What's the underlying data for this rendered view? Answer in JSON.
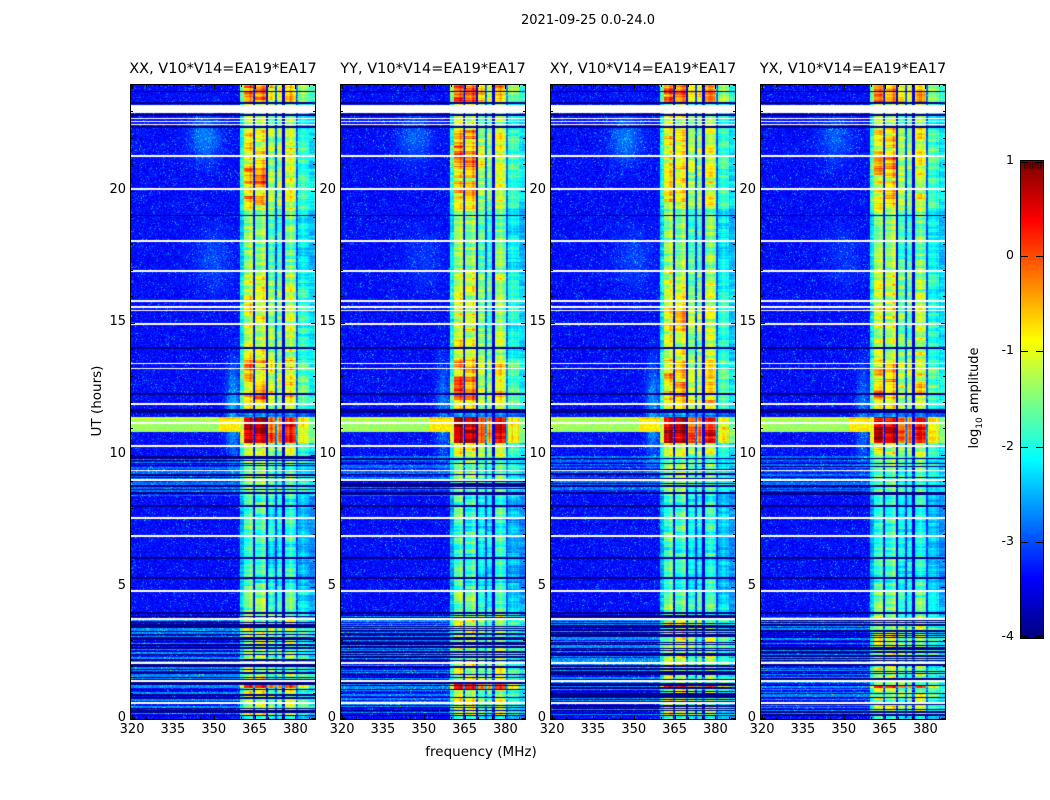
{
  "chart_data": {
    "type": "heatmap",
    "suptitle": "2021-09-25 0.0-24.0",
    "xlabel": "frequency (MHz)",
    "ylabel": "UT (hours)",
    "xlim": [
      319.6,
      387.2
    ],
    "ylim": [
      0,
      24
    ],
    "xticks": [
      320,
      335,
      350,
      365,
      380
    ],
    "yticks": [
      0,
      5,
      10,
      15,
      20
    ],
    "x_minor_step": 5,
    "y_minor_step": 1,
    "colormap": "jet",
    "grid": false,
    "colorbar": {
      "label_prefix": "log",
      "label_sub": "10",
      "label_suffix": " amplitude",
      "ticks": [
        1,
        0,
        -1,
        -2,
        -3,
        -4
      ],
      "vmin": -4,
      "vmax": 1
    },
    "panels": [
      {
        "id": "XX",
        "title": "XX, V10*V14=EA19*EA17",
        "seed": 11,
        "haze_gain": 1.0,
        "hot_spots": [
          [
            20.25,
            20.85,
            359.5,
            369.3,
            0.55
          ],
          [
            19.55,
            19.78,
            361,
            368,
            0.5
          ],
          [
            12.1,
            12.75,
            365.3,
            372.6,
            0.35
          ],
          [
            12.75,
            13.45,
            359.5,
            364.3,
            0.25
          ]
        ]
      },
      {
        "id": "YY",
        "title": "YY, V10*V14=EA19*EA17",
        "seed": 23,
        "haze_gain": 0.75,
        "hot_spots": [
          [
            20.9,
            21.7,
            359.5,
            372.6,
            0.65
          ],
          [
            19.9,
            20.35,
            359.5,
            369.3,
            0.35
          ],
          [
            21.95,
            22.35,
            365.3,
            369.3,
            0.45
          ],
          [
            12.0,
            12.95,
            359.5,
            369.3,
            0.45
          ],
          [
            23.3,
            23.95,
            359.5,
            372.6,
            0.3
          ]
        ]
      },
      {
        "id": "XY",
        "title": "XY, V10*V14=EA19*EA17",
        "seed": 37,
        "haze_gain": 0.95,
        "hot_spots": [
          [
            14.7,
            15.45,
            365.3,
            375.2,
            0.35
          ],
          [
            12.0,
            12.55,
            365.3,
            380.4,
            0.2
          ],
          [
            20.3,
            20.65,
            365.3,
            369.3,
            0.2
          ]
        ]
      },
      {
        "id": "YX",
        "title": "YX, V10*V14=EA19*EA17",
        "seed": 51,
        "haze_gain": 0.7,
        "hot_spots": [
          [
            20.55,
            21.35,
            359.5,
            369.3,
            0.5
          ],
          [
            12.0,
            12.65,
            359.5,
            369.3,
            0.3
          ],
          [
            23.3,
            23.9,
            359.5,
            372.6,
            0.25
          ],
          [
            19.6,
            19.85,
            361,
            368,
            0.3
          ]
        ]
      }
    ],
    "features": {
      "background": {
        "level": -3.35,
        "sigma": 0.16,
        "speckle_prob": 0.06,
        "speckle_max": 1.1
      },
      "rfi_band_segments": [
        [
          359.5,
          361.0,
          0.55
        ],
        [
          361.0,
          364.3,
          1.0
        ],
        [
          364.3,
          364.9,
          0.15
        ],
        [
          364.9,
          365.3,
          0.0
        ],
        [
          365.3,
          369.3,
          1.0
        ],
        [
          369.3,
          369.9,
          0.08
        ],
        [
          369.9,
          372.6,
          0.8
        ],
        [
          372.6,
          373.2,
          0.15
        ],
        [
          373.2,
          375.2,
          0.75
        ],
        [
          375.2,
          376.2,
          0.03
        ],
        [
          376.2,
          380.4,
          0.9
        ],
        [
          380.4,
          380.9,
          0.18
        ],
        [
          380.9,
          385.0,
          0.6
        ],
        [
          385.0,
          387.2,
          0.45
        ]
      ],
      "rfi_core_freqs": [
        363.6,
        368.3,
        371.2,
        374.2,
        378.3,
        383.0
      ],
      "rfi_envelope": [
        [
          0.0,
          0.12,
          -2.0,
          0.2
        ],
        [
          0.12,
          3.95,
          -1.25,
          0.55
        ],
        [
          3.95,
          4.9,
          -1.6,
          0.4
        ],
        [
          4.9,
          8.45,
          -1.9,
          0.35
        ],
        [
          8.45,
          9.95,
          -1.55,
          0.35
        ],
        [
          9.95,
          10.45,
          -1.05,
          0.4
        ],
        [
          10.45,
          11.45,
          0.65,
          0.35
        ],
        [
          11.45,
          11.7,
          -2.8,
          0.1
        ],
        [
          11.7,
          11.95,
          -1.0,
          0.3
        ],
        [
          11.95,
          13.6,
          -0.75,
          0.5
        ],
        [
          13.6,
          16.95,
          -1.15,
          0.45
        ],
        [
          16.95,
          19.3,
          -1.5,
          0.35
        ],
        [
          19.3,
          22.4,
          -0.95,
          0.45
        ],
        [
          22.4,
          23.3,
          -1.3,
          0.35
        ],
        [
          23.3,
          24.0,
          -0.35,
          0.4
        ]
      ],
      "white_lines": [
        [
          23.08,
          0.3
        ],
        [
          22.73,
          0.06
        ],
        [
          22.62,
          0.06
        ],
        [
          22.5,
          0.06
        ],
        [
          21.3,
          0.08
        ],
        [
          20.07,
          0.08
        ],
        [
          18.1,
          0.08
        ],
        [
          16.97,
          0.08
        ],
        [
          15.83,
          0.08
        ],
        [
          15.6,
          0.06
        ],
        [
          15.46,
          0.06
        ],
        [
          14.96,
          0.08
        ],
        [
          13.45,
          0.06
        ],
        [
          13.27,
          0.06
        ],
        [
          11.93,
          0.08
        ],
        [
          11.21,
          0.06
        ],
        [
          10.34,
          0.08
        ],
        [
          9.4,
          0.06
        ],
        [
          9.05,
          0.1
        ],
        [
          7.61,
          0.08
        ],
        [
          6.93,
          0.08
        ],
        [
          4.85,
          0.08
        ],
        [
          3.79,
          0.06
        ],
        [
          2.12,
          0.08
        ],
        [
          1.44,
          0.06
        ],
        [
          0.61,
          0.08
        ]
      ],
      "black_lines": [
        [
          23.75,
          0.05
        ],
        [
          23.32,
          0.06
        ],
        [
          22.86,
          0.08
        ],
        [
          22.42,
          0.06
        ],
        [
          19.05,
          0.05
        ],
        [
          14.05,
          0.06
        ],
        [
          12.31,
          0.06
        ],
        [
          11.66,
          0.12
        ],
        [
          9.85,
          0.05
        ],
        [
          9.66,
          0.05
        ],
        [
          8.83,
          0.06
        ],
        [
          8.56,
          0.06
        ],
        [
          8.07,
          0.06
        ],
        [
          6.1,
          0.05
        ],
        [
          5.34,
          0.06
        ],
        [
          4.01,
          0.06
        ]
      ],
      "stripe_zone": {
        "t0": 0.12,
        "t1": 3.95,
        "p_black": 0.4,
        "p_speckle": 0.35,
        "speckle_base": -2.7,
        "red_dash_t": [
          1.15,
          1.35
        ]
      },
      "speckle_zone": {
        "t0": 8.45,
        "t1": 9.95,
        "p_dark": 0.15,
        "p_bright": 0.5,
        "bright_base": -2.85,
        "else_base": -3.25
      },
      "burst": {
        "t0": 10.85,
        "t1": 11.45,
        "left_value": -1.35,
        "mid_f0": 352.0,
        "mid_value": -0.8
      },
      "haze_blobs": [
        [
          347,
          22.0,
          6,
          0.95,
          0.6
        ],
        [
          350,
          17.4,
          7,
          1.2,
          0.32
        ],
        [
          357,
          11.6,
          2.5,
          1.8,
          0.8
        ]
      ]
    }
  }
}
